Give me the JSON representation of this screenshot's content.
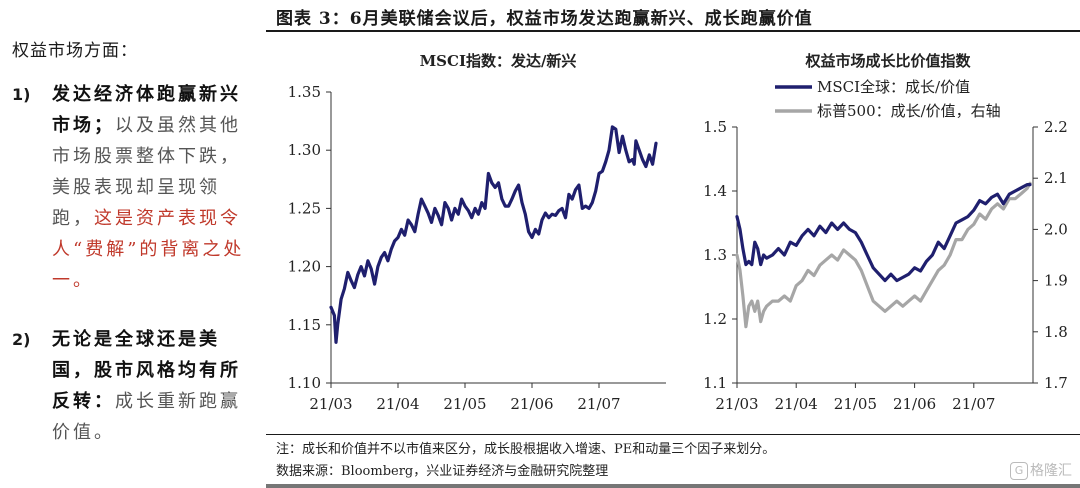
{
  "figure_title": "图表 3：6月美联储会议后，权益市场发达跑赢新兴、成长跑赢价值",
  "left_text": {
    "section": "权益市场方面：",
    "point1": {
      "num": "1)",
      "bold": "发达经济体跑赢新兴市场；",
      "gray": "以及虽然其他市场股票整体下跌，美股表现却呈现领跑，",
      "red": "这是资产表现令人“费解”的背离之处一。"
    },
    "point2": {
      "num": "2)",
      "bold": "无论是全球还是美国，股市风格均有所反转：",
      "gray": "成长重新跑赢价值。"
    }
  },
  "notes": {
    "note": "注：成长和价值并不以市值来区分，成长股根据收入增速、PE和动量三个因子来划分。",
    "source": "数据来源：Bloomberg，兴业证券经济与金融研究院整理"
  },
  "watermark": "格隆汇",
  "colors": {
    "navy": "#1f1f6e",
    "gray": "#a6a6a6",
    "axis": "#333333"
  },
  "chart_data": [
    {
      "type": "line",
      "title": "MSCI指数：发达/新兴",
      "ylim": [
        1.1,
        1.35
      ],
      "yticks": [
        "1.10",
        "1.15",
        "1.20",
        "1.25",
        "1.30",
        "1.35"
      ],
      "xlim": [
        0,
        100
      ],
      "xticks": [
        {
          "label": "21/03",
          "x": 0
        },
        {
          "label": "21/04",
          "x": 20
        },
        {
          "label": "21/05",
          "x": 40
        },
        {
          "label": "21/06",
          "x": 60
        },
        {
          "label": "21/07",
          "x": 80
        }
      ],
      "series": [
        {
          "name": "",
          "color": "#1f1f6e",
          "x": [
            0,
            1,
            1.5,
            2,
            3,
            4,
            5,
            6,
            7,
            8,
            9,
            10,
            11,
            12,
            13,
            14,
            15,
            16,
            17,
            18,
            19,
            20,
            21,
            22,
            23,
            24,
            25,
            26,
            27,
            28,
            29,
            30,
            31,
            32,
            33,
            34,
            35,
            36,
            37,
            38,
            39,
            40,
            41,
            42,
            43,
            44,
            45,
            46,
            47,
            48,
            49,
            50,
            51,
            52,
            53,
            54,
            55,
            56,
            57,
            58,
            59,
            60,
            61,
            62,
            63,
            64,
            65,
            66,
            67,
            68,
            69,
            70,
            71,
            72,
            73,
            74,
            75,
            76,
            77,
            78,
            79,
            80,
            81,
            82,
            83,
            84,
            85,
            86,
            87,
            88,
            89,
            90,
            90.5,
            91,
            92,
            93,
            94,
            95,
            96,
            97
          ],
          "values": [
            1.165,
            1.158,
            1.135,
            1.15,
            1.172,
            1.181,
            1.195,
            1.188,
            1.182,
            1.193,
            1.2,
            1.192,
            1.205,
            1.198,
            1.185,
            1.2,
            1.208,
            1.212,
            1.205,
            1.215,
            1.222,
            1.225,
            1.232,
            1.227,
            1.24,
            1.236,
            1.23,
            1.245,
            1.258,
            1.252,
            1.246,
            1.238,
            1.25,
            1.244,
            1.236,
            1.255,
            1.25,
            1.24,
            1.25,
            1.245,
            1.258,
            1.252,
            1.248,
            1.242,
            1.25,
            1.245,
            1.255,
            1.25,
            1.28,
            1.272,
            1.268,
            1.272,
            1.258,
            1.252,
            1.252,
            1.258,
            1.265,
            1.27,
            1.255,
            1.245,
            1.23,
            1.225,
            1.232,
            1.228,
            1.24,
            1.246,
            1.242,
            1.245,
            1.244,
            1.248,
            1.25,
            1.242,
            1.262,
            1.258,
            1.266,
            1.27,
            1.25,
            1.252,
            1.25,
            1.255,
            1.265,
            1.28,
            1.282,
            1.29,
            1.3,
            1.32,
            1.318,
            1.298,
            1.312,
            1.3,
            1.29,
            1.292,
            1.288,
            1.308,
            1.3,
            1.292,
            1.286,
            1.296,
            1.288,
            1.306
          ]
        }
      ]
    },
    {
      "type": "line",
      "title": "权益市场成长比价值指数",
      "ylim": [
        1.1,
        1.5
      ],
      "yticks": [
        "1.1",
        "1.2",
        "1.3",
        "1.4",
        "1.5"
      ],
      "y2lim": [
        1.7,
        2.2
      ],
      "y2ticks": [
        "1.7",
        "1.8",
        "1.9",
        "2.0",
        "2.1",
        "2.2"
      ],
      "xlim": [
        0,
        100
      ],
      "xticks": [
        {
          "label": "21/03",
          "x": 0
        },
        {
          "label": "21/04",
          "x": 20
        },
        {
          "label": "21/05",
          "x": 40
        },
        {
          "label": "21/06",
          "x": 60
        },
        {
          "label": "21/07",
          "x": 80
        }
      ],
      "series": [
        {
          "name": "MSCI全球：成长/价值",
          "axis": "left",
          "color": "#1f1f6e",
          "x": [
            0,
            1,
            2,
            3,
            4,
            5,
            6,
            7,
            8,
            9,
            10,
            12,
            14,
            16,
            18,
            20,
            22,
            24,
            26,
            28,
            30,
            32,
            34,
            36,
            38,
            40,
            42,
            44,
            46,
            48,
            50,
            52,
            54,
            56,
            58,
            60,
            62,
            64,
            66,
            68,
            70,
            72,
            74,
            76,
            78,
            80,
            82,
            84,
            86,
            88,
            90,
            92,
            94,
            96,
            98,
            99
          ],
          "values": [
            1.36,
            1.34,
            1.31,
            1.285,
            1.29,
            1.285,
            1.32,
            1.31,
            1.285,
            1.3,
            1.295,
            1.3,
            1.31,
            1.3,
            1.32,
            1.315,
            1.33,
            1.34,
            1.33,
            1.345,
            1.335,
            1.35,
            1.34,
            1.35,
            1.34,
            1.335,
            1.32,
            1.3,
            1.28,
            1.27,
            1.26,
            1.27,
            1.26,
            1.265,
            1.27,
            1.28,
            1.275,
            1.29,
            1.3,
            1.32,
            1.31,
            1.33,
            1.35,
            1.355,
            1.36,
            1.37,
            1.385,
            1.38,
            1.39,
            1.395,
            1.38,
            1.395,
            1.4,
            1.405,
            1.41,
            1.41
          ]
        },
        {
          "name": "标普500：成长/价值，右轴",
          "axis": "right",
          "color": "#a6a6a6",
          "x": [
            0,
            1,
            2,
            3,
            4,
            5,
            6,
            7,
            8,
            9,
            10,
            12,
            14,
            16,
            18,
            20,
            22,
            24,
            26,
            28,
            30,
            32,
            34,
            36,
            38,
            40,
            42,
            44,
            46,
            48,
            50,
            52,
            54,
            56,
            58,
            60,
            62,
            64,
            66,
            68,
            70,
            72,
            74,
            76,
            78,
            80,
            82,
            84,
            86,
            88,
            90,
            92,
            94,
            96,
            98,
            99
          ],
          "values": [
            1.95,
            1.92,
            1.87,
            1.81,
            1.85,
            1.86,
            1.84,
            1.86,
            1.82,
            1.84,
            1.85,
            1.86,
            1.86,
            1.87,
            1.86,
            1.89,
            1.9,
            1.92,
            1.91,
            1.93,
            1.94,
            1.95,
            1.94,
            1.96,
            1.95,
            1.94,
            1.92,
            1.89,
            1.86,
            1.85,
            1.84,
            1.85,
            1.86,
            1.85,
            1.86,
            1.87,
            1.86,
            1.88,
            1.9,
            1.92,
            1.93,
            1.95,
            1.98,
            1.98,
            2.0,
            2.01,
            2.03,
            2.02,
            2.04,
            2.05,
            2.04,
            2.06,
            2.06,
            2.07,
            2.08,
            2.09
          ]
        }
      ]
    }
  ]
}
